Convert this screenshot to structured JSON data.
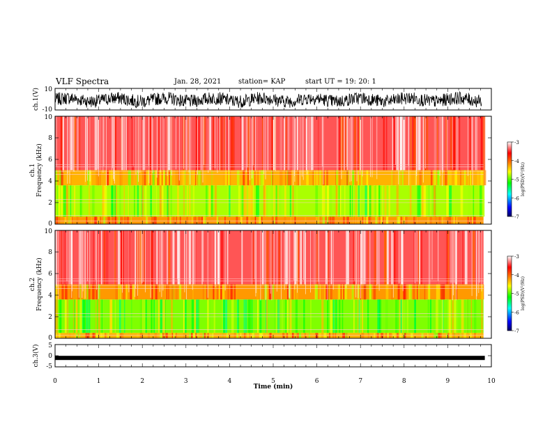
{
  "header": {
    "title": "VLF Spectra",
    "date": "Jan. 28, 2021",
    "station": "station= KAP",
    "start": "start  UT  =   19: 20: 1"
  },
  "chart_data": [
    {
      "type": "line",
      "panel": "ch1-waveform",
      "ylabel": "ch.1(V)",
      "ylim": [
        -10,
        10
      ],
      "yticks": [
        "10",
        "-10"
      ],
      "xlim": [
        0,
        10
      ],
      "color": "#000000"
    },
    {
      "type": "heatmap",
      "panel": "ch1-spectrogram",
      "ylabel": "ch.1\nFrequency  (kHz)",
      "ylim": [
        0,
        10
      ],
      "yticks": [
        "0",
        "2",
        "4",
        "6",
        "8",
        "10"
      ],
      "xlim": [
        0,
        9.82
      ],
      "colorbar": {
        "label": "log(PSD)(V²/Hz)",
        "range": [
          -7,
          -3
        ],
        "ticks": [
          "-3",
          "-4",
          "-5",
          "-6",
          "-7"
        ]
      },
      "bands": [
        {
          "freq": [
            0,
            0.7
          ],
          "level": -4.2
        },
        {
          "freq": [
            0.7,
            3.6
          ],
          "level": -4.8
        },
        {
          "freq": [
            3.6,
            5.0
          ],
          "level": -4.3
        },
        {
          "freq": [
            5.0,
            10
          ],
          "level": -3.4
        }
      ]
    },
    {
      "type": "heatmap",
      "panel": "ch2-spectrogram",
      "ylabel": "ch.2\nFrequency  (kHz)",
      "ylim": [
        0,
        10
      ],
      "yticks": [
        "0",
        "2",
        "4",
        "6",
        "8",
        "10"
      ],
      "xlim": [
        0,
        9.82
      ],
      "colorbar": {
        "label": "log(PSD)(V²/Hz)",
        "range": [
          -7,
          -3
        ],
        "ticks": [
          "-3",
          "-4",
          "-5",
          "-6",
          "-7"
        ]
      },
      "bands": [
        {
          "freq": [
            0,
            0.5
          ],
          "level": -4.3
        },
        {
          "freq": [
            0.5,
            3.6
          ],
          "level": -4.9
        },
        {
          "freq": [
            3.6,
            5.0
          ],
          "level": -4.2
        },
        {
          "freq": [
            5.0,
            10
          ],
          "level": -3.4
        }
      ]
    },
    {
      "type": "line",
      "panel": "ch3-waveform",
      "ylabel": "ch.3(V)",
      "ylim": [
        -5,
        5
      ],
      "yticks": [
        "5",
        "0",
        "-5"
      ],
      "xlim": [
        0,
        10
      ],
      "level": -1,
      "color": "#000000"
    }
  ],
  "xaxis": {
    "label": "Time  (min)",
    "ticks": [
      "0",
      "1",
      "2",
      "3",
      "4",
      "5",
      "6",
      "7",
      "8",
      "9",
      "10"
    ],
    "range": [
      0,
      10
    ]
  },
  "colors": {
    "axis": "#000000",
    "trace": "#000000",
    "background": "#ffffff"
  }
}
